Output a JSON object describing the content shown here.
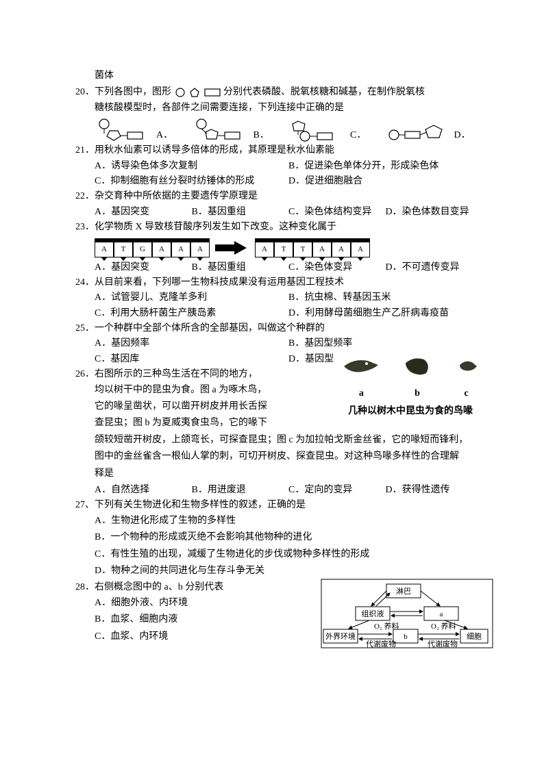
{
  "header_frag": "菌体",
  "q20": {
    "num": "20．",
    "text1": "下列各图中，图形",
    "text2": "分别代表磷酸、脱氧核糖和碱基，在制作脱氧核",
    "text3": "糖核酸模型时，各部件之间需要连接，下列连接中正确的是",
    "optA": "A．",
    "optB": "B．",
    "optC": "C．",
    "optD": "D．"
  },
  "q21": {
    "num": "21．",
    "text": "用秋水仙素可以诱导多倍体的形成，其原理是秋水仙素能",
    "a": "A．诱导染色体多次复制",
    "b": "B．促进染色单体分开，形成染色体",
    "c": "C．抑制细胞有丝分裂时纺锤体的形成",
    "d": "D．促进细胞融合"
  },
  "q22": {
    "num": "22．",
    "text": "杂交育种中所依据的主要遗传学原理是",
    "a": "A．基因突变",
    "b": "B．基因重组",
    "c": "C．染色体结构变异",
    "d": "D．染色体数目变异"
  },
  "q23": {
    "num": "23．",
    "text": "化学物质 X 导致核苷酸序列发生如下改变。这种变化属于",
    "seq1": [
      "A",
      "T",
      "G",
      "A",
      "A",
      "A"
    ],
    "seq2": [
      "A",
      "T",
      "T",
      "A",
      "A",
      "A"
    ],
    "a": "A．基因突变",
    "b": "B．基因重组",
    "c": "C．染色体变异",
    "d": "D．不可遗传变异"
  },
  "q24": {
    "num": "24．",
    "text": "从目前来看，下列哪一生物科技成果没有运用基因工程技术",
    "a": "A．试管婴儿、克隆羊多利",
    "b": "B．抗虫棉、转基因玉米",
    "c": "C．利用大肠杆菌生产胰岛素",
    "d": "D．利用酵母菌细胞生产乙肝病毒疫苗"
  },
  "q25": {
    "num": "25．",
    "text": "一个种群中全部个体所含的全部基因，叫做这个种群的",
    "a": "A．基因频率",
    "b": "B．基因型频率",
    "c": "C．基因库",
    "d": "D．基因型"
  },
  "q26": {
    "num": "26．",
    "l1": "右图所示的三种鸟生活在不同的地方，",
    "l2": "均以树干中的昆虫为食。图 a 为啄木鸟，",
    "l3": "它的喙呈凿状，可以凿开树皮并用长舌探",
    "l4": "查昆虫；图 b 为夏威夷食虫鸟，它的喙下",
    "l5": "颌较短凿开树皮，上颌弯长，可探查昆虫；图 c 为加拉帕戈斯金丝雀，它的喙短而锋利，",
    "l6": "图中的金丝雀含一根仙人掌的刺，可切开树皮、探查昆虫。对这种鸟喙多样性的合理解",
    "l7": "释是",
    "labels": {
      "a": "a",
      "b": "b",
      "c": "c"
    },
    "caption": "几种以树木中昆虫为食的鸟喙",
    "a": "A．自然选择",
    "b": "B．用进废退",
    "c": "C．定向的变异",
    "d": "D．获得性遗传"
  },
  "q27": {
    "num": "27、",
    "text": "下列有关生物进化和生物多样性的叙述，正确的是",
    "a": "A．生物进化形成了生物的多样性",
    "b": "B．一个物种的形成或灭绝不会影响其他物种的进化",
    "c": "C．有性生殖的出现，减缓了生物进化的步伐或物种多样性的形成",
    "d": "D．物种之间的共同进化与生存斗争无关"
  },
  "q28": {
    "num": "28．",
    "text": "右侧概念图中的 a、b 分别代表",
    "a": "A．细胞外液、内环境",
    "b": "B．血浆、细胞内液",
    "c": "C．血浆、内环境",
    "fig": {
      "boxes": {
        "lymph": "淋巴",
        "tissue": "组织液",
        "a": "a",
        "ext": "外界环境",
        "b": "b",
        "cell": "细胞"
      },
      "labels": {
        "o2n": "O₂ 养料",
        "waste": "代谢废物"
      }
    }
  },
  "colors": {
    "text": "#000000",
    "bg": "#ffffff",
    "stroke": "#000000"
  }
}
